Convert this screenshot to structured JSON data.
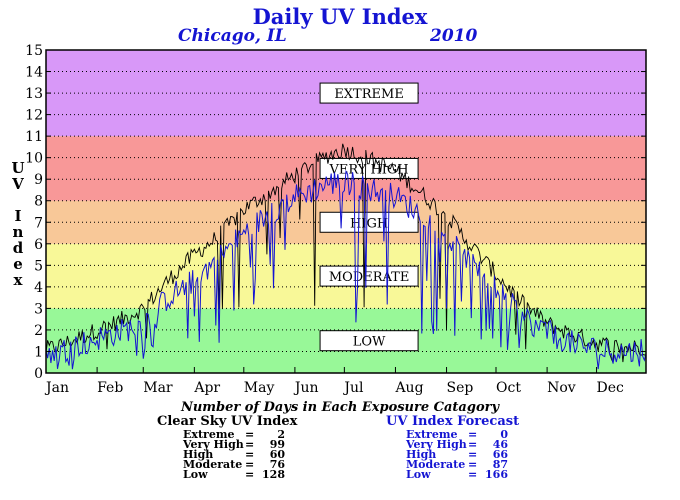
{
  "title": "Daily UV Index",
  "location": "Chicago, IL",
  "year": "2010",
  "ylabel_letters": [
    "U",
    "V",
    "",
    "I",
    "n",
    "d",
    "e",
    "x"
  ],
  "colors": {
    "extreme": "#d898f8",
    "very_high": "#f89898",
    "high": "#f8c898",
    "moderate": "#f8f898",
    "low": "#98f898",
    "clear_sky_line": "#000000",
    "forecast_line": "#1414d2",
    "title": "#1414d2"
  },
  "chart_data": {
    "type": "line",
    "title": "Daily UV Index",
    "ylabel": "UV Index",
    "xlabel": "",
    "ylim": [
      0,
      15
    ],
    "xlim": [
      1,
      365
    ],
    "y_ticks": [
      0,
      1,
      2,
      3,
      4,
      5,
      6,
      7,
      8,
      9,
      10,
      11,
      12,
      13,
      14,
      15
    ],
    "months": [
      {
        "label": "Jan",
        "start_day": 1
      },
      {
        "label": "Feb",
        "start_day": 32
      },
      {
        "label": "Mar",
        "start_day": 60
      },
      {
        "label": "Apr",
        "start_day": 91
      },
      {
        "label": "May",
        "start_day": 121
      },
      {
        "label": "Jun",
        "start_day": 152
      },
      {
        "label": "Jul",
        "start_day": 182
      },
      {
        "label": "Aug",
        "start_day": 213
      },
      {
        "label": "Sep",
        "start_day": 244
      },
      {
        "label": "Oct",
        "start_day": 274
      },
      {
        "label": "Nov",
        "start_day": 305
      },
      {
        "label": "Dec",
        "start_day": 335
      }
    ],
    "grid": "dotted horizontal",
    "bands": [
      {
        "label": "LOW",
        "from": 0,
        "to": 3,
        "color": "#98f898"
      },
      {
        "label": "MODERATE",
        "from": 3,
        "to": 6,
        "color": "#f8f898"
      },
      {
        "label": "HIGH",
        "from": 6,
        "to": 8,
        "color": "#f8c898"
      },
      {
        "label": "VERY HIGH",
        "from": 8,
        "to": 11,
        "color": "#f89898"
      },
      {
        "label": "EXTREME",
        "from": 11,
        "to": 15,
        "color": "#d898f8"
      }
    ],
    "series": [
      {
        "name": "Clear Sky UV Index",
        "color": "#000000",
        "x": [
          1,
          10,
          20,
          32,
          45,
          60,
          75,
          91,
          105,
          121,
          135,
          152,
          160,
          172,
          182,
          195,
          213,
          228,
          244,
          259,
          274,
          289,
          305,
          320,
          335,
          350,
          365
        ],
        "y": [
          1.1,
          1.3,
          1.6,
          2.0,
          2.4,
          3.0,
          4.3,
          5.5,
          6.3,
          7.6,
          8.3,
          9.2,
          9.6,
          10.1,
          10.4,
          10.0,
          9.4,
          8.4,
          7.3,
          5.9,
          4.6,
          3.3,
          2.3,
          1.8,
          1.4,
          1.2,
          1.2
        ]
      },
      {
        "name": "UV Index Forecast",
        "color": "#1414d2",
        "x": [
          1,
          10,
          20,
          32,
          45,
          60,
          75,
          91,
          105,
          121,
          135,
          152,
          160,
          172,
          182,
          195,
          213,
          228,
          244,
          259,
          274,
          289,
          305,
          320,
          335,
          350,
          365
        ],
        "y": [
          0.9,
          1.0,
          1.3,
          1.6,
          1.9,
          2.3,
          3.5,
          4.3,
          5.3,
          6.5,
          7.3,
          8.2,
          8.4,
          8.8,
          8.9,
          8.6,
          8.2,
          7.4,
          6.3,
          5.0,
          3.9,
          2.7,
          1.9,
          1.4,
          1.1,
          1.0,
          1.0
        ]
      }
    ]
  },
  "counts": {
    "caption": "Number of Days in Each Exposure Catagory",
    "clear_sky": {
      "heading": "Clear Sky UV Index",
      "rows": [
        {
          "label": "Extreme",
          "value": "2"
        },
        {
          "label": "Very High",
          "value": "99"
        },
        {
          "label": "High",
          "value": "60"
        },
        {
          "label": "Moderate",
          "value": "76"
        },
        {
          "label": "Low",
          "value": "128"
        }
      ]
    },
    "forecast": {
      "heading": "UV Index Forecast",
      "rows": [
        {
          "label": "Extreme",
          "value": "0"
        },
        {
          "label": "Very High",
          "value": "46"
        },
        {
          "label": "High",
          "value": "66"
        },
        {
          "label": "Moderate",
          "value": "87"
        },
        {
          "label": "Low",
          "value": "166"
        }
      ]
    }
  }
}
